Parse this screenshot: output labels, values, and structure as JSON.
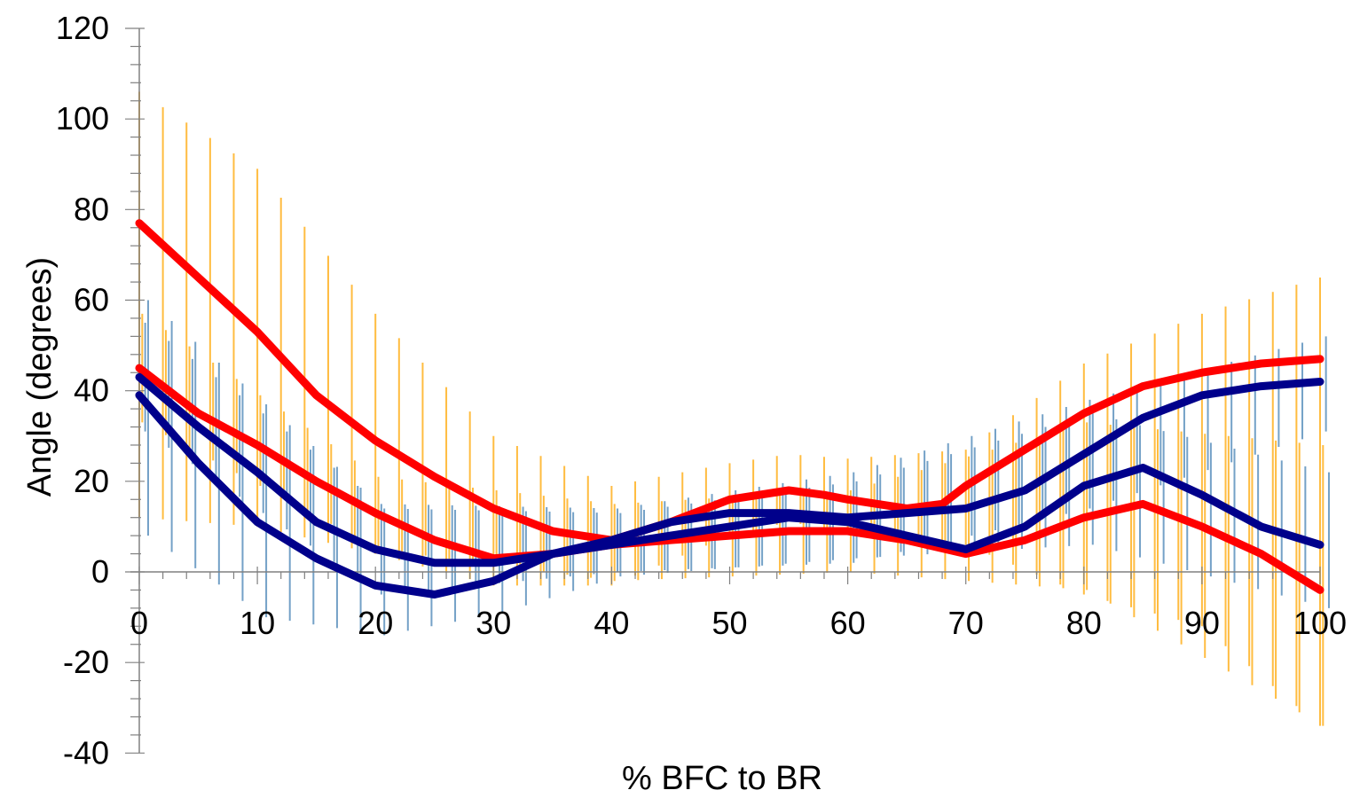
{
  "chart_data": {
    "type": "line",
    "title": "",
    "xlabel": "% BFC to BR",
    "ylabel": "Angle (degrees)",
    "xlim": [
      0,
      100
    ],
    "ylim": [
      -40,
      120
    ],
    "x_ticks": [
      "0",
      "10",
      "20",
      "30",
      "40",
      "50",
      "60",
      "70",
      "80",
      "90",
      "100"
    ],
    "y_ticks": [
      "120",
      "100",
      "80",
      "60",
      "40",
      "20",
      "0",
      "-20",
      "-40"
    ],
    "grid": false,
    "legend": "none",
    "series": [
      {
        "color": "#ff0000",
        "points": [
          [
            0,
            77
          ],
          [
            5,
            65
          ],
          [
            10,
            53
          ],
          [
            15,
            39
          ],
          [
            20,
            29
          ],
          [
            25,
            21
          ],
          [
            30,
            14
          ],
          [
            35,
            9
          ],
          [
            40,
            7
          ],
          [
            45,
            11
          ],
          [
            50,
            16
          ],
          [
            55,
            18
          ],
          [
            58,
            17
          ],
          [
            60,
            16
          ],
          [
            65,
            14
          ],
          [
            68,
            15
          ],
          [
            70,
            19
          ],
          [
            75,
            27
          ],
          [
            80,
            35
          ],
          [
            85,
            41
          ],
          [
            90,
            44
          ],
          [
            95,
            46
          ],
          [
            100,
            47
          ]
        ],
        "error_bars": {
          "color": "#ffa500",
          "upper": [
            [
              0,
              106
            ],
            [
              10,
              89
            ],
            [
              20,
              57
            ],
            [
              30,
              30
            ],
            [
              40,
              19
            ],
            [
              50,
              24
            ],
            [
              55,
              26
            ],
            [
              60,
              25
            ],
            [
              70,
              27
            ],
            [
              80,
              46
            ],
            [
              90,
              57
            ],
            [
              100,
              65
            ]
          ],
          "lower": [
            [
              0,
              12
            ],
            [
              10,
              10
            ],
            [
              20,
              4
            ],
            [
              30,
              -3
            ],
            [
              40,
              -3
            ],
            [
              50,
              8
            ],
            [
              55,
              11
            ],
            [
              60,
              9
            ],
            [
              70,
              6
            ],
            [
              80,
              -5
            ],
            [
              90,
              -12
            ],
            [
              100,
              -34
            ]
          ]
        }
      },
      {
        "color": "#ff0000",
        "points": [
          [
            0,
            45
          ],
          [
            5,
            35
          ],
          [
            10,
            28
          ],
          [
            15,
            20
          ],
          [
            20,
            13
          ],
          [
            25,
            7
          ],
          [
            30,
            3
          ],
          [
            35,
            4
          ],
          [
            40,
            6
          ],
          [
            45,
            7
          ],
          [
            50,
            8
          ],
          [
            55,
            9
          ],
          [
            60,
            9
          ],
          [
            65,
            7
          ],
          [
            70,
            4
          ],
          [
            75,
            7
          ],
          [
            80,
            12
          ],
          [
            85,
            15
          ],
          [
            90,
            10
          ],
          [
            95,
            4
          ],
          [
            100,
            -4
          ]
        ],
        "error_bars": {
          "color": "#ffa500",
          "upper": [
            [
              0,
              57
            ],
            [
              20,
              21
            ],
            [
              40,
              15
            ],
            [
              60,
              18
            ],
            [
              80,
              33
            ],
            [
              100,
              28
            ]
          ],
          "lower": [
            [
              0,
              33
            ],
            [
              20,
              5
            ],
            [
              40,
              -2
            ],
            [
              60,
              0
            ],
            [
              80,
              -4
            ],
            [
              100,
              -34
            ]
          ]
        }
      },
      {
        "color": "#00008b",
        "points": [
          [
            0,
            43
          ],
          [
            5,
            32
          ],
          [
            10,
            22
          ],
          [
            15,
            11
          ],
          [
            20,
            5
          ],
          [
            25,
            2
          ],
          [
            30,
            2
          ],
          [
            35,
            4
          ],
          [
            40,
            7
          ],
          [
            45,
            11
          ],
          [
            50,
            13
          ],
          [
            55,
            13
          ],
          [
            60,
            12
          ],
          [
            65,
            13
          ],
          [
            70,
            14
          ],
          [
            75,
            18
          ],
          [
            80,
            26
          ],
          [
            85,
            34
          ],
          [
            90,
            39
          ],
          [
            95,
            41
          ],
          [
            100,
            42
          ]
        ],
        "error_bars": {
          "color": "#4682b4",
          "upper": [
            [
              0,
              55
            ],
            [
              20,
              15
            ],
            [
              40,
              14
            ],
            [
              60,
              22
            ],
            [
              80,
              38
            ],
            [
              100,
              52
            ]
          ],
          "lower": [
            [
              0,
              31
            ],
            [
              20,
              -5
            ],
            [
              40,
              0
            ],
            [
              60,
              2
            ],
            [
              80,
              14
            ],
            [
              100,
              31
            ]
          ]
        }
      },
      {
        "color": "#00008b",
        "points": [
          [
            0,
            39
          ],
          [
            5,
            24
          ],
          [
            10,
            11
          ],
          [
            15,
            3
          ],
          [
            20,
            -3
          ],
          [
            25,
            -5
          ],
          [
            30,
            -2
          ],
          [
            35,
            4
          ],
          [
            40,
            6
          ],
          [
            45,
            8
          ],
          [
            50,
            10
          ],
          [
            55,
            12
          ],
          [
            60,
            11
          ],
          [
            65,
            8
          ],
          [
            70,
            5
          ],
          [
            75,
            10
          ],
          [
            80,
            19
          ],
          [
            85,
            23
          ],
          [
            90,
            17
          ],
          [
            95,
            10
          ],
          [
            100,
            6
          ]
        ],
        "error_bars": {
          "color": "#4682b4",
          "upper": [
            [
              0,
              60
            ],
            [
              20,
              14
            ],
            [
              40,
              13
            ],
            [
              60,
              20
            ],
            [
              80,
              35
            ],
            [
              100,
              22
            ]
          ],
          "lower": [
            [
              0,
              8
            ],
            [
              10,
              -10
            ],
            [
              20,
              -14
            ],
            [
              30,
              -9
            ],
            [
              40,
              -1
            ],
            [
              60,
              3
            ],
            [
              80,
              6
            ],
            [
              100,
              -8
            ]
          ]
        }
      }
    ]
  }
}
